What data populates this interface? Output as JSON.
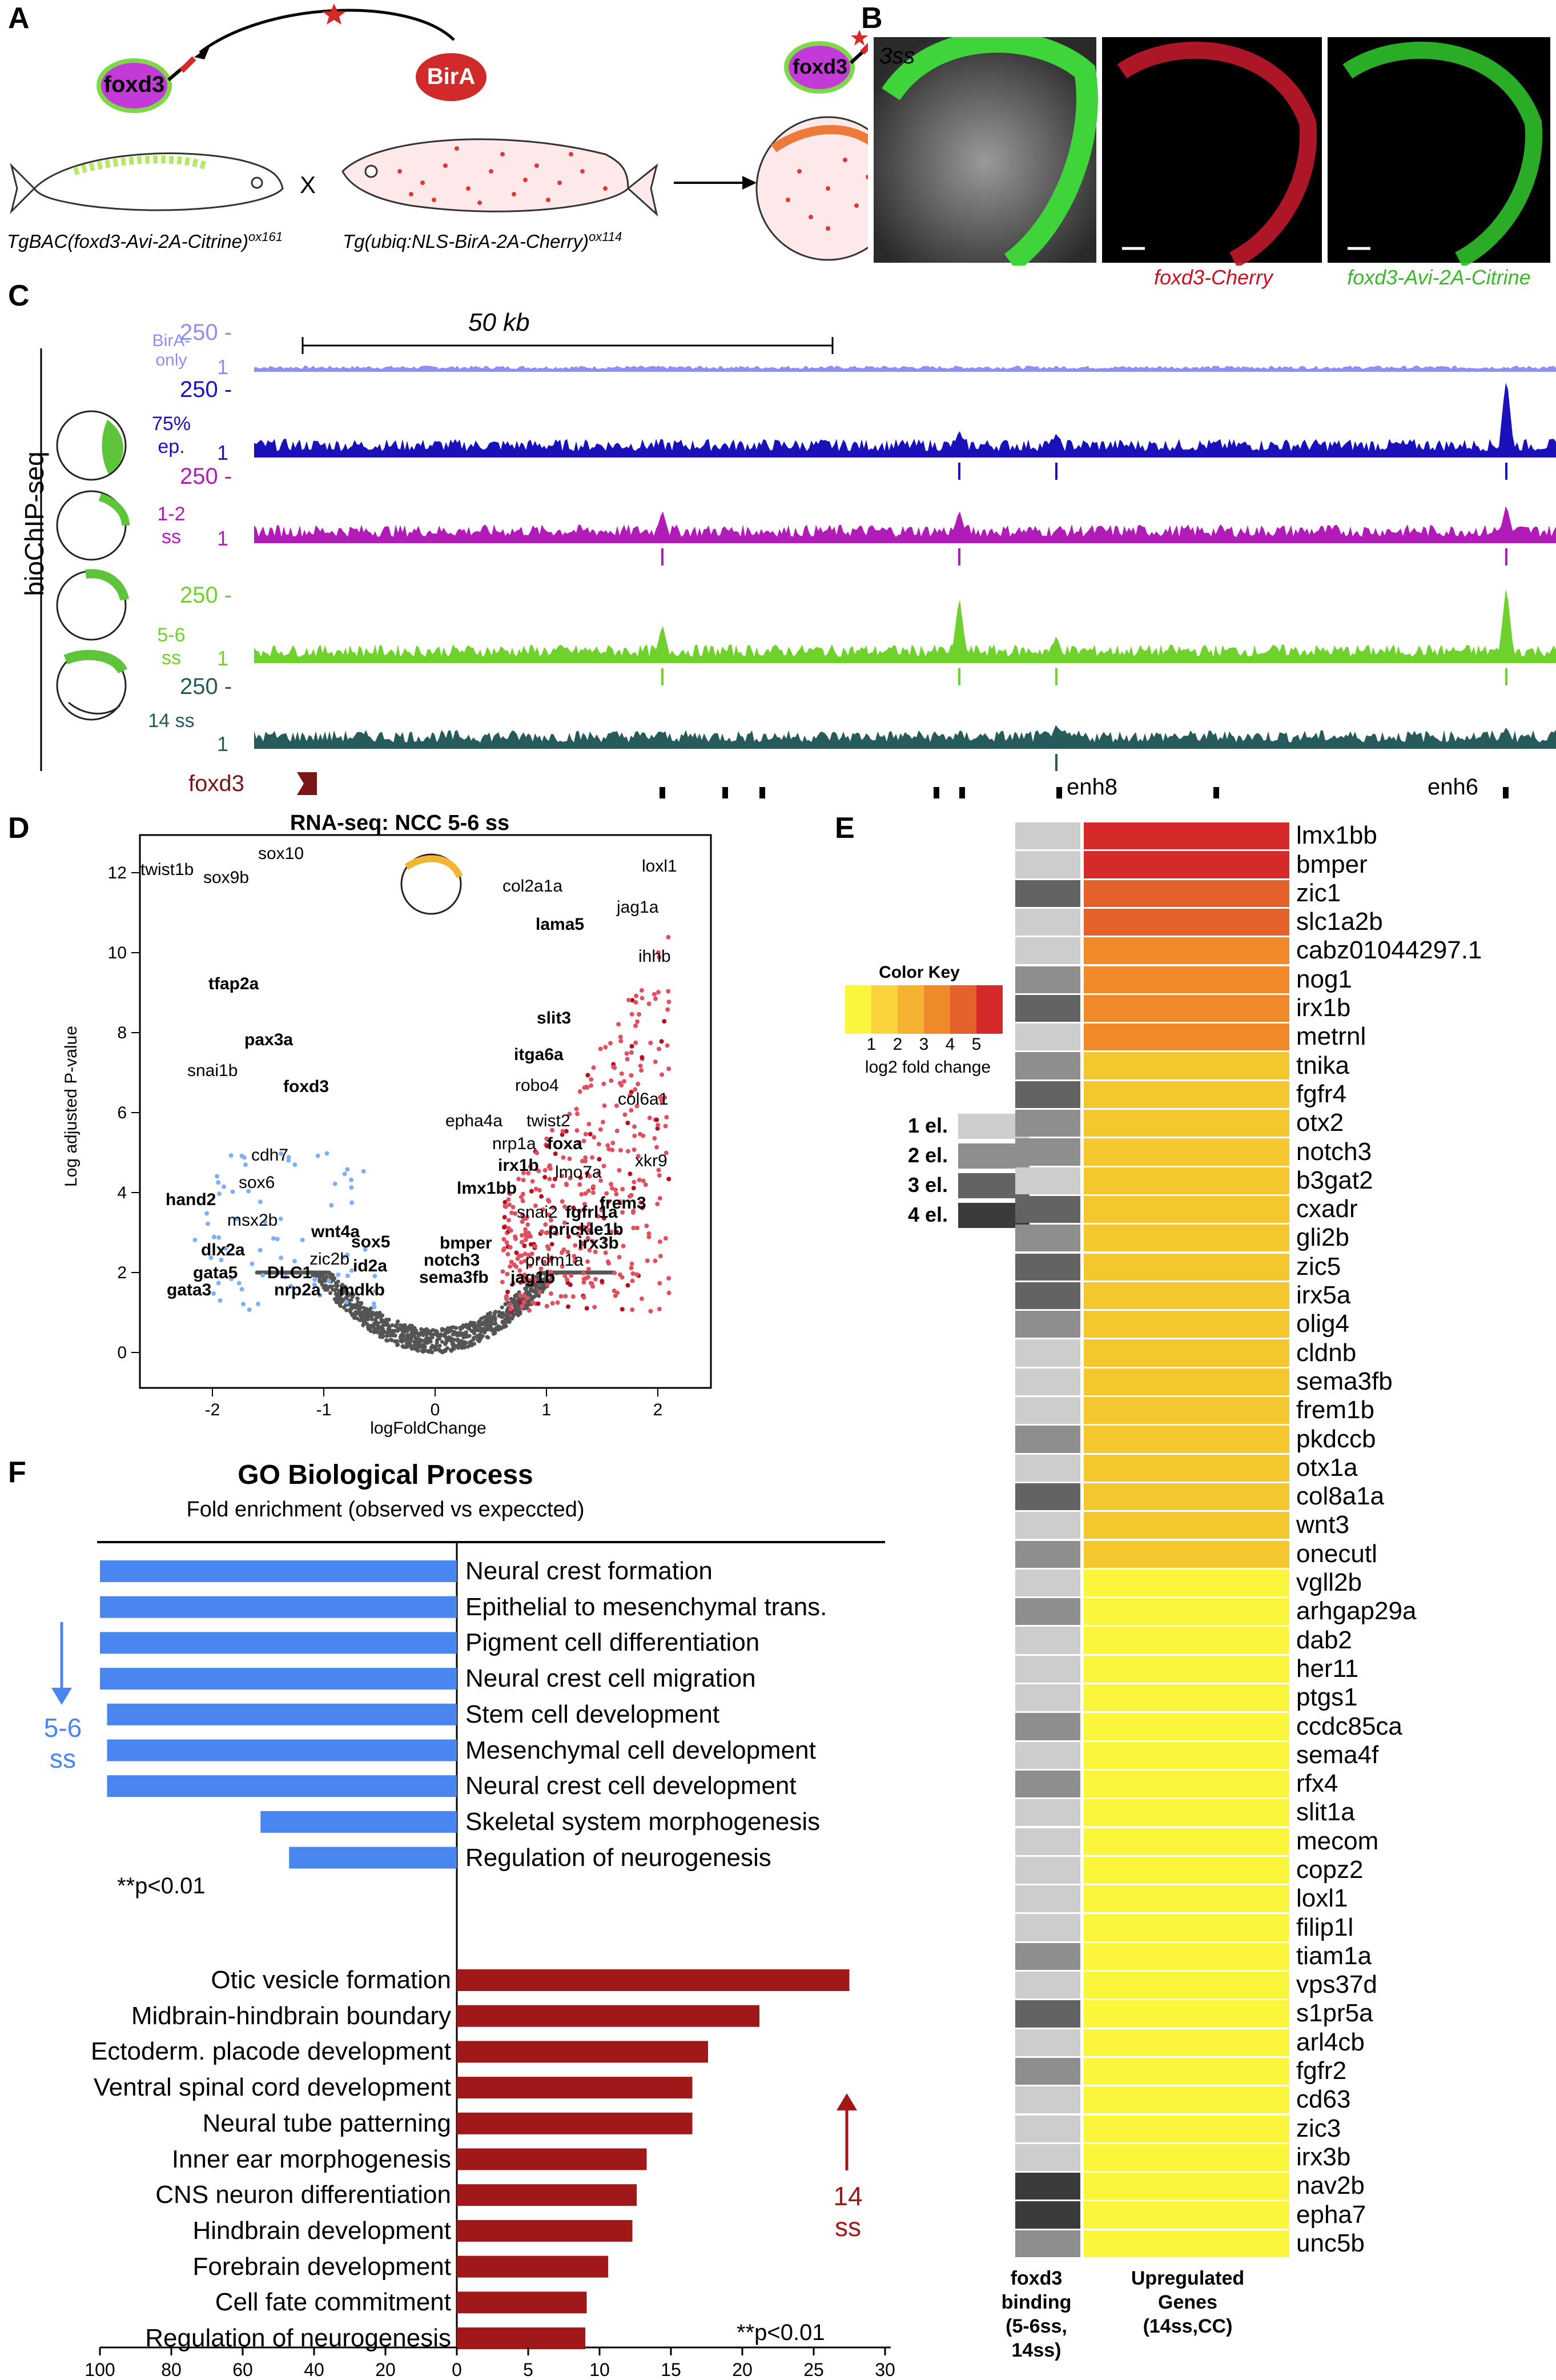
{
  "panels": {
    "a": "A",
    "b": "B",
    "c": "C",
    "d": "D",
    "e": "E",
    "f": "F"
  },
  "panelA": {
    "gene": "foxd3",
    "enzyme": "BirA",
    "cross": "X",
    "line1": "TgBAC(foxd3-Avi-2A-Citrine)",
    "line1_sup": "ox161",
    "line2": "Tg(ubiq:NLS-BirA-2A-Cherry)",
    "line2_sup": "ox114"
  },
  "panelB": {
    "stage": "3ss",
    "cherry_label": "foxd3-Cherry",
    "citrine_label": "foxd3-Avi-2A-Citrine"
  },
  "panelC": {
    "method": "bioChIP-seq",
    "scale": "50 kb",
    "tracks": [
      {
        "name": "BirA-only",
        "ymax": "250 -",
        "ymin": "1",
        "color": "#8f8ff0"
      },
      {
        "name": "75% ep.",
        "ymax": "250 -",
        "ymin": "1",
        "color": "#1a12b8"
      },
      {
        "name": "1-2 ss",
        "ymax": "250 -",
        "ymin": "1",
        "color": "#b11cb8"
      },
      {
        "name": "5-6 ss",
        "ymax": "250 -",
        "ymin": "1",
        "color": "#6fd22c"
      },
      {
        "name": "14 ss",
        "ymax": "250 -",
        "ymin": "1",
        "color": "#275a5a"
      }
    ],
    "gene": "foxd3",
    "enh8": "enh8",
    "enh6": "enh6"
  },
  "panelD": {
    "title": "RNA-seq: NCC 5-6 ss",
    "xlabel": "logFoldChange",
    "ylabel": "Log adjusted P-value",
    "xticks": [
      "-2",
      "-1",
      "0",
      "1",
      "2"
    ],
    "yticks": [
      "0",
      "2",
      "4",
      "6",
      "8",
      "10",
      "12"
    ],
    "down_labels": [
      {
        "t": "twist1b",
        "b": false
      },
      {
        "t": "sox9b",
        "b": false
      },
      {
        "t": "sox10",
        "b": false
      },
      {
        "t": "tfap2a",
        "b": true
      },
      {
        "t": "pax3a",
        "b": true
      },
      {
        "t": "snai1b",
        "b": false
      },
      {
        "t": "foxd3",
        "b": true
      },
      {
        "t": "cdh7",
        "b": false
      },
      {
        "t": "sox6",
        "b": false
      },
      {
        "t": "hand2",
        "b": true
      },
      {
        "t": "msx2b",
        "b": false
      },
      {
        "t": "wnt4a",
        "b": true
      },
      {
        "t": "sox5",
        "b": true
      },
      {
        "t": "dlx2a",
        "b": true
      },
      {
        "t": "zic2b",
        "b": false
      },
      {
        "t": "id2a",
        "b": true
      },
      {
        "t": "gata5",
        "b": true
      },
      {
        "t": "DLC1",
        "b": true
      },
      {
        "t": "gata3",
        "b": true
      },
      {
        "t": "nrp2a",
        "b": true
      },
      {
        "t": "mdkb",
        "b": true
      }
    ],
    "up_labels": [
      {
        "t": "loxl1",
        "b": false
      },
      {
        "t": "col2a1a",
        "b": false
      },
      {
        "t": "jag1a",
        "b": false
      },
      {
        "t": "lama5",
        "b": true
      },
      {
        "t": "ihhb",
        "b": false
      },
      {
        "t": "slit3",
        "b": true
      },
      {
        "t": "itga6a",
        "b": true
      },
      {
        "t": "robo4",
        "b": false
      },
      {
        "t": "col6a1",
        "b": false
      },
      {
        "t": "epha4a",
        "b": false
      },
      {
        "t": "twist2",
        "b": false
      },
      {
        "t": "nrp1a",
        "b": false
      },
      {
        "t": "foxa",
        "b": true
      },
      {
        "t": "xkr9",
        "b": false
      },
      {
        "t": "irx1b",
        "b": true
      },
      {
        "t": "lmo7a",
        "b": false
      },
      {
        "t": "lmx1bb",
        "b": true
      },
      {
        "t": "frem3",
        "b": true
      },
      {
        "t": "snai2",
        "b": false
      },
      {
        "t": "fgfrl1a",
        "b": true
      },
      {
        "t": "prickle1b",
        "b": true
      },
      {
        "t": "bmper",
        "b": true
      },
      {
        "t": "irx3b",
        "b": true
      },
      {
        "t": "notch3",
        "b": true
      },
      {
        "t": "prdm1a",
        "b": false
      },
      {
        "t": "sema3fb",
        "b": true
      },
      {
        "t": "jag1b",
        "b": true
      }
    ]
  },
  "panelE": {
    "color_key_title": "Color Key",
    "color_key_ticks": [
      "1",
      "2",
      "3",
      "4",
      "5"
    ],
    "color_key_label": "log2 fold change",
    "element_legend": [
      "1 el.",
      "2 el.",
      "3 el.",
      "4 el."
    ],
    "col1_title": "foxd3 binding (5-6ss, 14ss)",
    "col2_title": "Upregulated Genes (14ss,CC)",
    "genes": [
      "lmx1bb",
      "bmper",
      "zic1",
      "slc1a2b",
      "cabz01044297.1",
      "nog1",
      "irx1b",
      "metrnl",
      "tnika",
      "fgfr4",
      "otx2",
      "notch3",
      "b3gat2",
      "cxadr",
      "gli2b",
      "zic5",
      "irx5a",
      "olig4",
      "cldnb",
      "sema3fb",
      "frem1b",
      "pkdccb",
      "otx1a",
      "col8a1a",
      "wnt3",
      "onecutl",
      "vgll2b",
      "arhgap29a",
      "dab2",
      "her11",
      "ptgs1",
      "ccdc85ca",
      "sema4f",
      "rfx4",
      "slit1a",
      "mecom",
      "copz2",
      "loxl1",
      "filip1l",
      "tiam1a",
      "vps37d",
      "s1pr5a",
      "arl4cb",
      "fgfr2",
      "cd63",
      "zic3",
      "irx3b",
      "nav2b",
      "epha7",
      "unc5b"
    ],
    "binding": [
      1,
      1,
      3,
      1,
      1,
      2,
      3,
      1,
      2,
      3,
      2,
      2,
      1,
      3,
      2,
      3,
      3,
      2,
      1,
      1,
      1,
      2,
      1,
      3,
      1,
      2,
      1,
      2,
      1,
      1,
      1,
      2,
      1,
      2,
      1,
      1,
      1,
      1,
      1,
      2,
      1,
      3,
      1,
      2,
      1,
      1,
      1,
      4,
      4,
      2
    ],
    "fold": [
      5.4,
      5.4,
      4.5,
      4.4,
      4.0,
      3.8,
      3.7,
      3.7,
      3.0,
      3.0,
      3.0,
      3.0,
      3.0,
      3.0,
      3.0,
      3.0,
      3.0,
      3.0,
      3.0,
      3.0,
      3.0,
      3.0,
      3.0,
      3.0,
      3.0,
      3.0,
      2.0,
      2.0,
      2.0,
      2.0,
      2.0,
      2.0,
      2.0,
      2.0,
      2.0,
      2.0,
      2.0,
      2.0,
      2.0,
      2.0,
      2.0,
      2.0,
      2.0,
      2.0,
      2.0,
      2.0,
      2.0,
      2.0,
      2.0,
      2.0
    ]
  },
  "panelF": {
    "title": "GO Biological Process",
    "subtitle": "Fold enrichment  (observed vs expeccted)",
    "down_stage": "5-6\nss",
    "up_stage": "14\nss",
    "pval": "**p<0.01",
    "down": [
      {
        "label": "Neural crest formation",
        "value": 100
      },
      {
        "label": "Epithelial to mesenchymal trans.",
        "value": 100
      },
      {
        "label": "Pigment cell differentiation",
        "value": 100
      },
      {
        "label": "Neural crest cell migration",
        "value": 100
      },
      {
        "label": "Stem cell development",
        "value": 98
      },
      {
        "label": "Mesenchymal cell development",
        "value": 98
      },
      {
        "label": "Neural crest cell development",
        "value": 98
      },
      {
        "label": "Skeletal system morphogenesis",
        "value": 55
      },
      {
        "label": "Regulation of neurogenesis",
        "value": 47
      }
    ],
    "up": [
      {
        "label": "Otic vesicle formation",
        "value": 27.5
      },
      {
        "label": "Midbrain-hindbrain boundary",
        "value": 21.2
      },
      {
        "label": "Ectoderm. placode development",
        "value": 17.6
      },
      {
        "label": "Ventral spinal cord development",
        "value": 16.5
      },
      {
        "label": "Neural tube patterning",
        "value": 16.5
      },
      {
        "label": "Inner ear morphogenesis",
        "value": 13.3
      },
      {
        "label": "CNS  neuron differentiation",
        "value": 12.6
      },
      {
        "label": "Hindbrain development",
        "value": 12.3
      },
      {
        "label": "Forebrain development",
        "value": 10.6
      },
      {
        "label": "Cell fate commitment",
        "value": 9.1
      },
      {
        "label": "Regulation of neurogenesis",
        "value": 9.0
      }
    ],
    "left_ticks": [
      "100",
      "80",
      "60",
      "40",
      "20",
      "0"
    ],
    "right_ticks": [
      "5",
      "10",
      "15",
      "20",
      "25",
      "30"
    ]
  }
}
